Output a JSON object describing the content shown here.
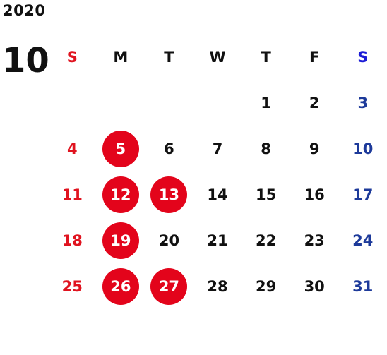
{
  "year": "2020",
  "month": "10",
  "weekdays": [
    "S",
    "M",
    "T",
    "W",
    "T",
    "F",
    "S"
  ],
  "weeks": [
    [
      "",
      "",
      "",
      "",
      "1",
      "2",
      "3"
    ],
    [
      "4",
      "5",
      "6",
      "7",
      "8",
      "9",
      "10"
    ],
    [
      "11",
      "12",
      "13",
      "14",
      "15",
      "16",
      "17"
    ],
    [
      "18",
      "19",
      "20",
      "21",
      "22",
      "23",
      "24"
    ],
    [
      "25",
      "26",
      "27",
      "28",
      "29",
      "30",
      "31"
    ]
  ],
  "highlighted_days": [
    "5",
    "12",
    "13",
    "19",
    "26",
    "27"
  ],
  "colors": {
    "sunday": "#e0131f",
    "saturday": "#1d3a9a",
    "saturday_header": "#1b1bd6",
    "highlight": "#e3041b"
  }
}
